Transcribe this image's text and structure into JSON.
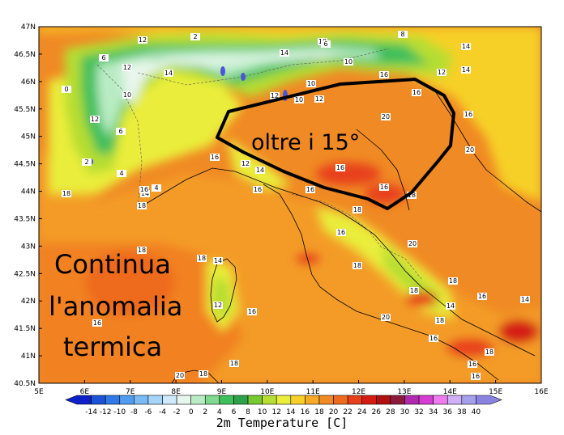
{
  "map": {
    "y_axis_labels": [
      "47N",
      "46.5N",
      "46N",
      "45.5N",
      "45N",
      "44.5N",
      "44N",
      "43.5N",
      "43N",
      "42.5N",
      "42N",
      "41.5N",
      "41N",
      "40.5N"
    ],
    "x_axis_labels": [
      "5E",
      "6E",
      "7E",
      "8E",
      "9E",
      "10E",
      "11E",
      "12E",
      "13E",
      "14E",
      "15E",
      "16E"
    ],
    "annotation_area": "oltre i 15°",
    "annotation_left_lines": [
      "Continua",
      "l'anomalia",
      "termica"
    ],
    "contour_labels": [
      "12",
      "2",
      "6",
      "12",
      "14",
      "10",
      "0",
      "12",
      "6",
      "2",
      "4",
      "4",
      "10",
      "10",
      "10",
      "12",
      "10",
      "12",
      "14",
      "6",
      "8",
      "16",
      "16",
      "14",
      "14",
      "12",
      "16",
      "20",
      "20",
      "16",
      "16",
      "18",
      "16",
      "18",
      "18",
      "14",
      "12",
      "16",
      "16",
      "18",
      "20",
      "18",
      "14",
      "18",
      "20",
      "18",
      "16",
      "14",
      "16",
      "16",
      "18",
      "18",
      "14",
      "12",
      "16",
      "16",
      "18",
      "20",
      "18",
      "18",
      "14",
      "16",
      "16",
      "18",
      "16"
    ]
  },
  "legend": {
    "title": "2m Temperature [C]",
    "ticks": [
      "-14",
      "-12",
      "-10",
      "-8",
      "-6",
      "-4",
      "-2",
      "0",
      "2",
      "4",
      "6",
      "8",
      "10",
      "12",
      "14",
      "16",
      "18",
      "20",
      "22",
      "24",
      "26",
      "28",
      "30",
      "32",
      "34",
      "36",
      "38",
      "40"
    ],
    "colors": [
      "#1020c8",
      "#1a52d8",
      "#2f7ae6",
      "#4f9cf0",
      "#78bbf5",
      "#a5d6fa",
      "#cfeafc",
      "#e9f6ee",
      "#b9ecc4",
      "#7fd98f",
      "#3fbf5c",
      "#2ea24a",
      "#78c832",
      "#b6dd32",
      "#eaed3a",
      "#f6d028",
      "#f6aa26",
      "#f08a24",
      "#ee6b1e",
      "#e8401a",
      "#d41c12",
      "#b0100e",
      "#8c1a3c",
      "#b02ab0",
      "#d43cd2",
      "#ee7cf0",
      "#d0b0f6",
      "#a6a0ec",
      "#8a84e0"
    ],
    "accent": "#000000"
  }
}
